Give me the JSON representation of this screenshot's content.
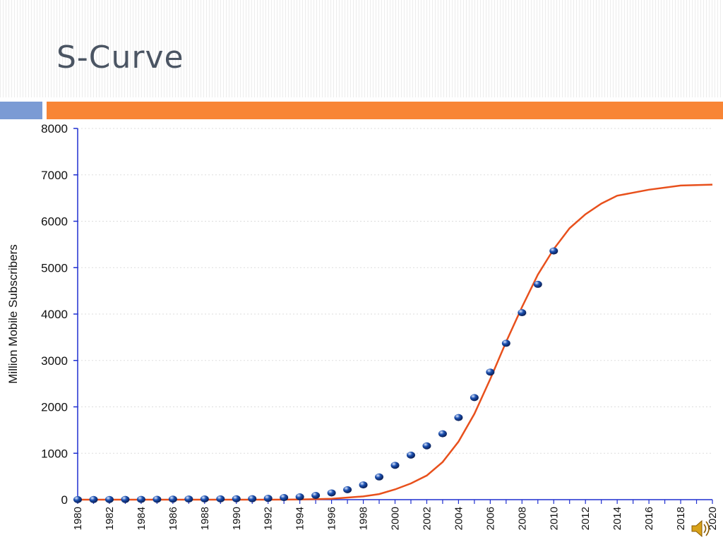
{
  "slide": {
    "title": "S-Curve"
  },
  "colors": {
    "accent_left": "#7b9bd4",
    "accent_right": "#f88535",
    "axis": "#1f2fd0",
    "points": "#1a4fb0",
    "curve": "#e8501c",
    "gridline": "#dddddd"
  },
  "icons": {
    "audio": "speaker-icon"
  },
  "chart_data": {
    "type": "scatter",
    "title": "",
    "xlabel": "",
    "ylabel": "Million Mobile Subscribers",
    "xlim": [
      1980,
      2020
    ],
    "ylim": [
      0,
      8000
    ],
    "x_ticks": [
      1980,
      1982,
      1984,
      1986,
      1988,
      1990,
      1992,
      1994,
      1996,
      1998,
      2000,
      2002,
      2004,
      2006,
      2008,
      2010,
      2012,
      2014,
      2016,
      2018,
      2020
    ],
    "y_ticks": [
      0,
      1000,
      2000,
      3000,
      4000,
      5000,
      6000,
      7000,
      8000
    ],
    "grid": true,
    "series": [
      {
        "type": "scatter",
        "x": [
          1980,
          1981,
          1982,
          1983,
          1984,
          1985,
          1986,
          1987,
          1988,
          1989,
          1990,
          1991,
          1992,
          1993,
          1994,
          1995,
          1996,
          1997,
          1998,
          1999,
          2000,
          2001,
          2002,
          2003,
          2004,
          2005,
          2006,
          2007,
          2008,
          2009,
          2010
        ],
        "y": [
          2,
          3,
          4,
          5,
          6,
          8,
          11,
          13,
          15,
          17,
          19,
          20,
          28,
          45,
          61,
          91,
          145,
          215,
          318,
          490,
          740,
          960,
          1160,
          1420,
          1770,
          2200,
          2750,
          3370,
          4030,
          4640,
          5360
        ]
      },
      {
        "type": "line",
        "x": [
          1980,
          1984,
          1988,
          1990,
          1992,
          1994,
          1996,
          1998,
          1999,
          2000,
          2001,
          2002,
          2003,
          2004,
          2005,
          2006,
          2007,
          2008,
          2009,
          2010,
          2011,
          2012,
          2013,
          2014,
          2016,
          2018,
          2020
        ],
        "y": [
          0,
          0,
          0,
          0,
          0,
          5,
          20,
          70,
          120,
          220,
          350,
          520,
          810,
          1250,
          1850,
          2600,
          3400,
          4150,
          4850,
          5400,
          5850,
          6150,
          6380,
          6550,
          6680,
          6770,
          6790
        ]
      }
    ]
  }
}
